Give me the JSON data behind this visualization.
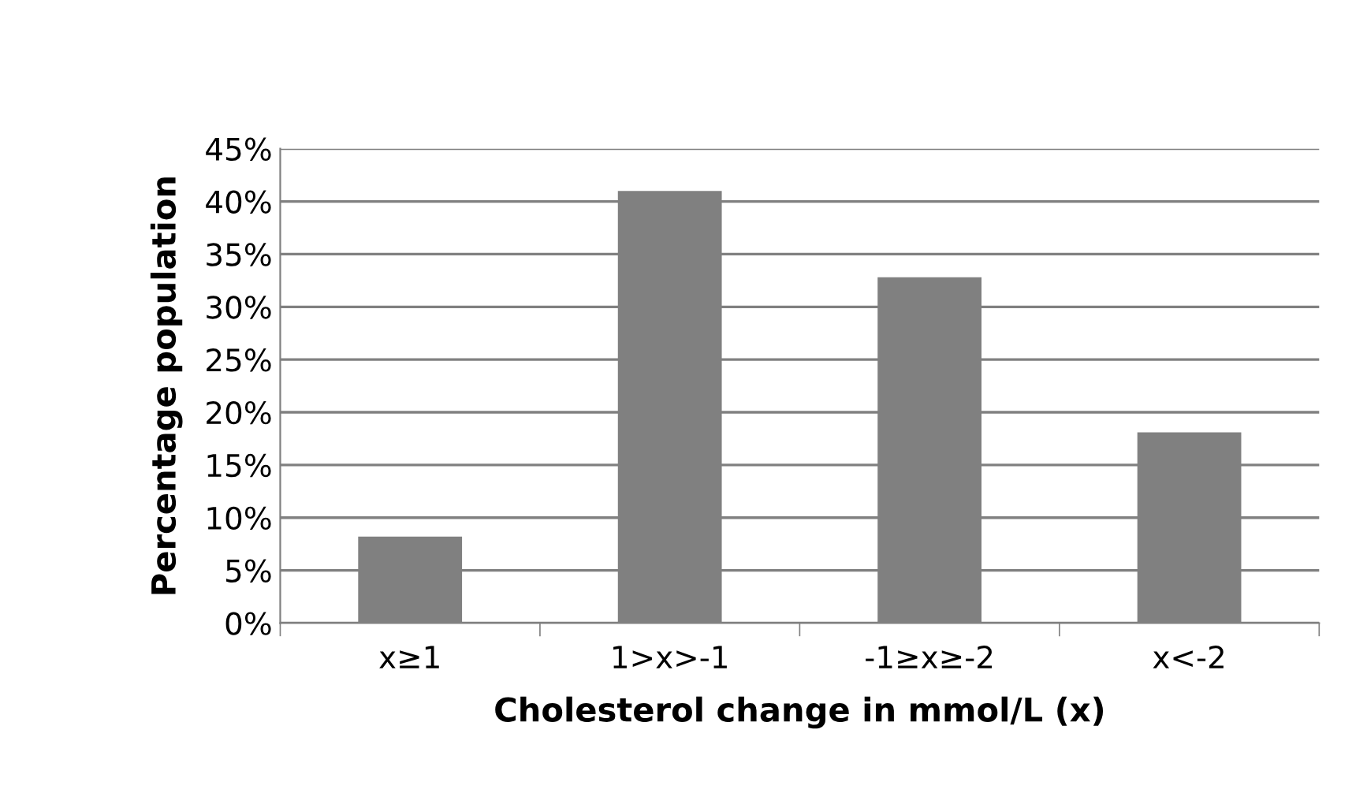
{
  "chart_data": {
    "type": "bar",
    "xlabel": "Cholesterol change in mmol/L (x)",
    "ylabel": "Percentage population",
    "categories": [
      "x≥1",
      "1>x>-1",
      "-1≥x≥-2",
      "x<-2"
    ],
    "values": [
      8.2,
      41.0,
      32.8,
      18.1
    ],
    "color": "#808080",
    "ylim": [
      0,
      45
    ],
    "yticks": [
      {
        "value": 0,
        "label": "0%"
      },
      {
        "value": 5,
        "label": "5%"
      },
      {
        "value": 10,
        "label": "10%"
      },
      {
        "value": 15,
        "label": "15%"
      },
      {
        "value": 20,
        "label": "20%"
      },
      {
        "value": 25,
        "label": "25%"
      },
      {
        "value": 30,
        "label": "30%"
      },
      {
        "value": 35,
        "label": "35%"
      },
      {
        "value": 40,
        "label": "40%"
      },
      {
        "value": 45,
        "label": "45%"
      }
    ],
    "grid": "y",
    "legend": false
  }
}
